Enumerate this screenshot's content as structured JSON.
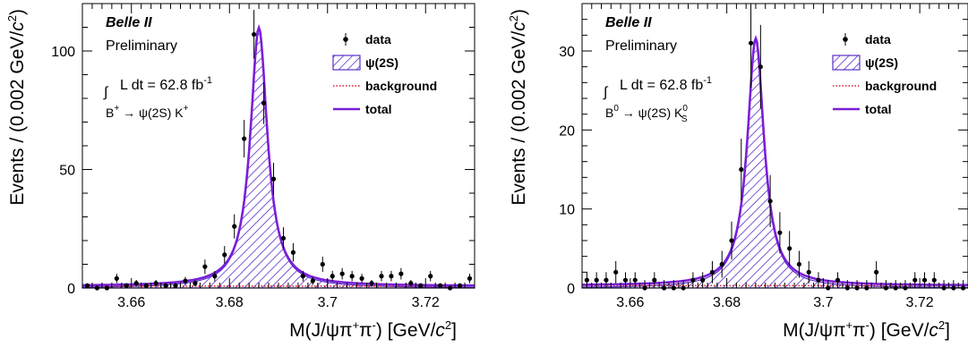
{
  "chart_data": [
    {
      "type": "scatter",
      "experiment": "Belle II",
      "status": "Preliminary",
      "luminosity": "L dt = 62.8 fb",
      "luminosity_unit_sup": "-1",
      "decay_parts": [
        "B",
        "+",
        " → ψ(2S) K",
        "+",
        ""
      ],
      "xlabel_parts": [
        "M(J/ψπ",
        "+",
        "π",
        "-",
        ") [GeV/",
        "c",
        "2",
        "]"
      ],
      "ylabel_parts": [
        "Events / (0.002 GeV/",
        "c",
        "2",
        ")"
      ],
      "xlim": [
        3.65,
        3.73
      ],
      "ylim": [
        0,
        120
      ],
      "x_ticks": [
        3.66,
        3.68,
        3.7,
        3.72
      ],
      "x_tick_labels": [
        "3.66",
        "3.68",
        "3.7",
        "3.72"
      ],
      "y_ticks": [
        0,
        50,
        100
      ],
      "y_tick_labels": [
        "0",
        "50",
        "100"
      ],
      "legend": [
        {
          "label": "data",
          "kind": "data"
        },
        {
          "label": "ψ(2S)",
          "kind": "hatch"
        },
        {
          "label": "background",
          "kind": "dotted"
        },
        {
          "label": "total",
          "kind": "line"
        }
      ],
      "model": {
        "mean": 3.686,
        "width": 0.0021,
        "signal_peak": 109,
        "background": 0.8
      },
      "data_points": [
        {
          "x": 3.651,
          "y": 1,
          "err": 1
        },
        {
          "x": 3.653,
          "y": 0,
          "err": 1
        },
        {
          "x": 3.655,
          "y": 0,
          "err": 1
        },
        {
          "x": 3.657,
          "y": 4,
          "err": 2
        },
        {
          "x": 3.659,
          "y": 1,
          "err": 1
        },
        {
          "x": 3.661,
          "y": 2,
          "err": 1.4
        },
        {
          "x": 3.663,
          "y": 1,
          "err": 1
        },
        {
          "x": 3.665,
          "y": 2,
          "err": 1.4
        },
        {
          "x": 3.667,
          "y": 1,
          "err": 1
        },
        {
          "x": 3.669,
          "y": 1,
          "err": 1
        },
        {
          "x": 3.671,
          "y": 3,
          "err": 1.7
        },
        {
          "x": 3.673,
          "y": 2,
          "err": 1.4
        },
        {
          "x": 3.675,
          "y": 9,
          "err": 3
        },
        {
          "x": 3.677,
          "y": 5,
          "err": 2.2
        },
        {
          "x": 3.679,
          "y": 14,
          "err": 3.7
        },
        {
          "x": 3.681,
          "y": 26,
          "err": 5.1
        },
        {
          "x": 3.683,
          "y": 63,
          "err": 7.9
        },
        {
          "x": 3.685,
          "y": 107,
          "err": 10.3
        },
        {
          "x": 3.687,
          "y": 78,
          "err": 8.8
        },
        {
          "x": 3.689,
          "y": 46,
          "err": 6.8
        },
        {
          "x": 3.691,
          "y": 21,
          "err": 4.6
        },
        {
          "x": 3.693,
          "y": 15,
          "err": 3.9
        },
        {
          "x": 3.695,
          "y": 5,
          "err": 2.2
        },
        {
          "x": 3.697,
          "y": 3,
          "err": 1.7
        },
        {
          "x": 3.699,
          "y": 10,
          "err": 3.2
        },
        {
          "x": 3.701,
          "y": 5,
          "err": 2.2
        },
        {
          "x": 3.703,
          "y": 6,
          "err": 2.4
        },
        {
          "x": 3.705,
          "y": 5,
          "err": 2.2
        },
        {
          "x": 3.707,
          "y": 4,
          "err": 2
        },
        {
          "x": 3.709,
          "y": 2,
          "err": 1.4
        },
        {
          "x": 3.711,
          "y": 5,
          "err": 2.2
        },
        {
          "x": 3.713,
          "y": 5,
          "err": 2.2
        },
        {
          "x": 3.715,
          "y": 6,
          "err": 2.4
        },
        {
          "x": 3.717,
          "y": 2,
          "err": 1.4
        },
        {
          "x": 3.719,
          "y": 1,
          "err": 1
        },
        {
          "x": 3.721,
          "y": 5,
          "err": 2.2
        },
        {
          "x": 3.723,
          "y": 1,
          "err": 1
        },
        {
          "x": 3.725,
          "y": 0,
          "err": 1
        },
        {
          "x": 3.727,
          "y": 1,
          "err": 1
        },
        {
          "x": 3.729,
          "y": 4,
          "err": 2
        }
      ]
    },
    {
      "type": "scatter",
      "experiment": "Belle II",
      "status": "Preliminary",
      "luminosity": "L dt = 62.8 fb",
      "luminosity_unit_sup": "-1",
      "decay_parts": [
        "B",
        "0",
        " → ψ(2S) K",
        "0",
        "S"
      ],
      "xlabel_parts": [
        "M(J/ψπ",
        "+",
        "π",
        "-",
        ") [GeV/",
        "c",
        "2",
        "]"
      ],
      "ylabel_parts": [
        "Events / (0.002 GeV/",
        "c",
        "2",
        ")"
      ],
      "xlim": [
        3.65,
        3.73
      ],
      "ylim": [
        0,
        36
      ],
      "x_ticks": [
        3.66,
        3.68,
        3.7,
        3.72
      ],
      "x_tick_labels": [
        "3.66",
        "3.68",
        "3.7",
        "3.72"
      ],
      "y_ticks": [
        0,
        10,
        20,
        30
      ],
      "y_tick_labels": [
        "0",
        "10",
        "20",
        "30"
      ],
      "legend": [
        {
          "label": "data",
          "kind": "data"
        },
        {
          "label": "ψ(2S)",
          "kind": "hatch"
        },
        {
          "label": "background",
          "kind": "dotted"
        },
        {
          "label": "total",
          "kind": "line"
        }
      ],
      "model": {
        "mean": 3.686,
        "width": 0.0021,
        "signal_peak": 31.3,
        "background": 0.3
      },
      "data_points": [
        {
          "x": 3.651,
          "y": 1,
          "err": 1
        },
        {
          "x": 3.653,
          "y": 1,
          "err": 1
        },
        {
          "x": 3.655,
          "y": 1,
          "err": 1
        },
        {
          "x": 3.657,
          "y": 2,
          "err": 1.4
        },
        {
          "x": 3.659,
          "y": 1,
          "err": 1
        },
        {
          "x": 3.661,
          "y": 1,
          "err": 1
        },
        {
          "x": 3.663,
          "y": 0,
          "err": 1
        },
        {
          "x": 3.665,
          "y": 1,
          "err": 1
        },
        {
          "x": 3.667,
          "y": 0,
          "err": 1
        },
        {
          "x": 3.669,
          "y": 0,
          "err": 1
        },
        {
          "x": 3.671,
          "y": 0,
          "err": 1
        },
        {
          "x": 3.673,
          "y": 1,
          "err": 1
        },
        {
          "x": 3.675,
          "y": 1,
          "err": 1
        },
        {
          "x": 3.677,
          "y": 2,
          "err": 1.4
        },
        {
          "x": 3.679,
          "y": 3,
          "err": 1.7
        },
        {
          "x": 3.681,
          "y": 6,
          "err": 2.4
        },
        {
          "x": 3.683,
          "y": 15,
          "err": 3.9
        },
        {
          "x": 3.685,
          "y": 31,
          "err": 5.6
        },
        {
          "x": 3.687,
          "y": 28,
          "err": 5.3
        },
        {
          "x": 3.689,
          "y": 11,
          "err": 3.3
        },
        {
          "x": 3.691,
          "y": 7,
          "err": 2.6
        },
        {
          "x": 3.693,
          "y": 5,
          "err": 2.2
        },
        {
          "x": 3.695,
          "y": 3,
          "err": 1.7
        },
        {
          "x": 3.697,
          "y": 2,
          "err": 1.4
        },
        {
          "x": 3.699,
          "y": 1,
          "err": 1
        },
        {
          "x": 3.701,
          "y": 0,
          "err": 1
        },
        {
          "x": 3.703,
          "y": 1,
          "err": 1
        },
        {
          "x": 3.705,
          "y": 0,
          "err": 1
        },
        {
          "x": 3.707,
          "y": 0,
          "err": 1
        },
        {
          "x": 3.709,
          "y": 0,
          "err": 1
        },
        {
          "x": 3.711,
          "y": 2,
          "err": 1.4
        },
        {
          "x": 3.713,
          "y": 0,
          "err": 1
        },
        {
          "x": 3.715,
          "y": 0,
          "err": 1
        },
        {
          "x": 3.717,
          "y": 0,
          "err": 1
        },
        {
          "x": 3.719,
          "y": 1,
          "err": 1
        },
        {
          "x": 3.721,
          "y": 1,
          "err": 1
        },
        {
          "x": 3.723,
          "y": 1,
          "err": 1
        },
        {
          "x": 3.725,
          "y": 0,
          "err": 1
        },
        {
          "x": 3.727,
          "y": 0,
          "err": 1
        },
        {
          "x": 3.729,
          "y": 0,
          "err": 1
        }
      ]
    }
  ],
  "colors": {
    "total": "#7a1fd8",
    "hatch": "#5a2ec9",
    "background": "#e0182b",
    "data": "#000000"
  }
}
